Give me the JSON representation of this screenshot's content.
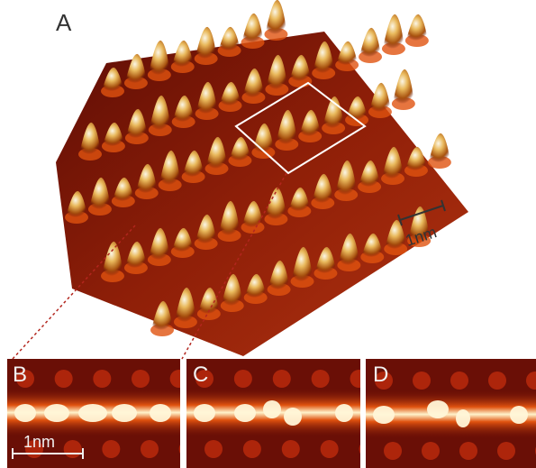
{
  "figure": {
    "panel_a_label": "A",
    "panel_b_label": "B",
    "panel_c_label": "C",
    "panel_d_label": "D",
    "scale_bar_a": "1nm",
    "scale_bar_b": "1nm"
  },
  "colors": {
    "surface_dark": "#6a0f06",
    "surface_mid": "#c0390c",
    "surface_bright": "#f28a18",
    "peak_highlight": "#f6f0dc",
    "selection_box": "#ffffff",
    "guide_lines": "#b3261e"
  }
}
